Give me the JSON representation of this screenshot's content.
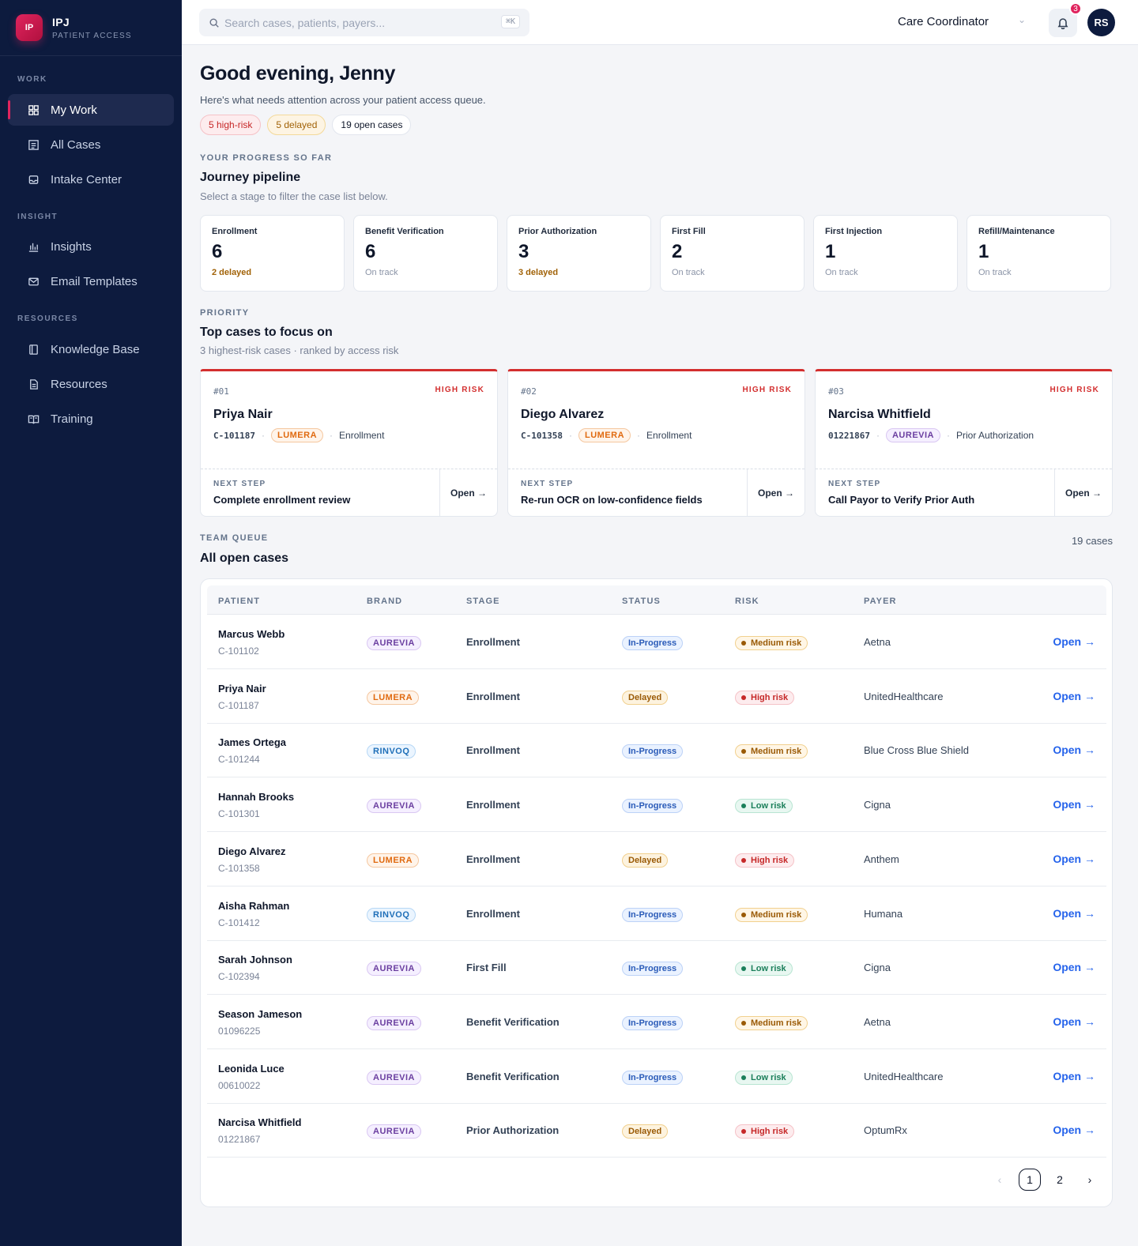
{
  "colors": {
    "sidebar": "#0d1b3e",
    "accent": "#e0245e",
    "link": "#2563eb",
    "high_risk": "#d32f2f"
  },
  "brand": {
    "logo": "IP",
    "title": "IPJ",
    "subtitle": "PATIENT ACCESS"
  },
  "sidebar": {
    "sections": [
      {
        "label": "WORK"
      },
      {
        "label": "INSIGHT"
      },
      {
        "label": "RESOURCES"
      }
    ],
    "items": [
      {
        "label": "My Work",
        "icon": "grid-icon",
        "active": true
      },
      {
        "label": "All Cases",
        "icon": "list-icon"
      },
      {
        "label": "Intake Center",
        "icon": "inbox-icon"
      },
      {
        "label": "Insights",
        "icon": "bar-chart-icon"
      },
      {
        "label": "Email Templates",
        "icon": "mail-icon"
      },
      {
        "label": "Knowledge Base",
        "icon": "book-icon"
      },
      {
        "label": "Resources",
        "icon": "document-icon"
      },
      {
        "label": "Training",
        "icon": "open-book-icon"
      }
    ]
  },
  "topbar": {
    "search_placeholder": "Search cases, patients, payers...",
    "shortcut": "⌘K",
    "role": "Care Coordinator",
    "notifications": "3",
    "avatar": "RS"
  },
  "greeting": {
    "title": "Good evening, Jenny",
    "subtitle": "Here's what needs attention across your patient access queue.",
    "chips": [
      "5 high-risk",
      "5 delayed",
      "19 open cases"
    ]
  },
  "pipeline": {
    "eyebrow": "YOUR PROGRESS SO FAR",
    "title": "Journey pipeline",
    "subtitle": "Select a stage to filter the case list below.",
    "stages": [
      {
        "name": "Enrollment",
        "count": "6",
        "status": "2 delayed",
        "delayed": true
      },
      {
        "name": "Benefit Verification",
        "count": "6",
        "status": "On track",
        "delayed": false
      },
      {
        "name": "Prior Authorization",
        "count": "3",
        "status": "3 delayed",
        "delayed": true
      },
      {
        "name": "First Fill",
        "count": "2",
        "status": "On track",
        "delayed": false
      },
      {
        "name": "First Injection",
        "count": "1",
        "status": "On track",
        "delayed": false
      },
      {
        "name": "Refill/Maintenance",
        "count": "1",
        "status": "On track",
        "delayed": false
      }
    ]
  },
  "priority": {
    "eyebrow": "PRIORITY",
    "title": "Top cases to focus on",
    "subtitle": "3 highest-risk cases · ranked by access risk",
    "next_step_label": "NEXT STEP",
    "open_label": "Open →",
    "cases": [
      {
        "num": "#01",
        "risk": "HIGH RISK",
        "name": "Priya Nair",
        "id": "C-101187",
        "brand": "LUMERA",
        "stage": "Enrollment",
        "next": "Complete enrollment review"
      },
      {
        "num": "#02",
        "risk": "HIGH RISK",
        "name": "Diego Alvarez",
        "id": "C-101358",
        "brand": "LUMERA",
        "stage": "Enrollment",
        "next": "Re-run OCR on low-confidence fields"
      },
      {
        "num": "#03",
        "risk": "HIGH RISK",
        "name": "Narcisa Whitfield",
        "id": "01221867",
        "brand": "AUREVIA",
        "stage": "Prior Authorization",
        "next": "Call Payor to Verify Prior Auth"
      }
    ]
  },
  "queue": {
    "eyebrow": "TEAM QUEUE",
    "title": "All open cases",
    "count": "19 cases",
    "columns": [
      "PATIENT",
      "BRAND",
      "STAGE",
      "STATUS",
      "RISK",
      "PAYER"
    ],
    "open_label": "Open →",
    "rows": [
      {
        "name": "Marcus Webb",
        "id": "C-101102",
        "brand": "AUREVIA",
        "stage": "Enrollment",
        "status": "In-Progress",
        "risk": "Medium risk",
        "payer": "Aetna"
      },
      {
        "name": "Priya Nair",
        "id": "C-101187",
        "brand": "LUMERA",
        "stage": "Enrollment",
        "status": "Delayed",
        "risk": "High risk",
        "payer": "UnitedHealthcare"
      },
      {
        "name": "James Ortega",
        "id": "C-101244",
        "brand": "RINVOQ",
        "stage": "Enrollment",
        "status": "In-Progress",
        "risk": "Medium risk",
        "payer": "Blue Cross Blue Shield"
      },
      {
        "name": "Hannah Brooks",
        "id": "C-101301",
        "brand": "AUREVIA",
        "stage": "Enrollment",
        "status": "In-Progress",
        "risk": "Low risk",
        "payer": "Cigna"
      },
      {
        "name": "Diego Alvarez",
        "id": "C-101358",
        "brand": "LUMERA",
        "stage": "Enrollment",
        "status": "Delayed",
        "risk": "High risk",
        "payer": "Anthem"
      },
      {
        "name": "Aisha Rahman",
        "id": "C-101412",
        "brand": "RINVOQ",
        "stage": "Enrollment",
        "status": "In-Progress",
        "risk": "Medium risk",
        "payer": "Humana"
      },
      {
        "name": "Sarah Johnson",
        "id": "C-102394",
        "brand": "AUREVIA",
        "stage": "First Fill",
        "status": "In-Progress",
        "risk": "Low risk",
        "payer": "Cigna"
      },
      {
        "name": "Season Jameson",
        "id": "01096225",
        "brand": "AUREVIA",
        "stage": "Benefit Verification",
        "status": "In-Progress",
        "risk": "Medium risk",
        "payer": "Aetna"
      },
      {
        "name": "Leonida Luce",
        "id": "00610022",
        "brand": "AUREVIA",
        "stage": "Benefit Verification",
        "status": "In-Progress",
        "risk": "Low risk",
        "payer": "UnitedHealthcare"
      },
      {
        "name": "Narcisa Whitfield",
        "id": "01221867",
        "brand": "AUREVIA",
        "stage": "Prior Authorization",
        "status": "Delayed",
        "risk": "High risk",
        "payer": "OptumRx"
      }
    ],
    "pagination": {
      "prev": "‹",
      "pages": [
        "1",
        "2"
      ],
      "current": "1",
      "next": "›"
    }
  }
}
